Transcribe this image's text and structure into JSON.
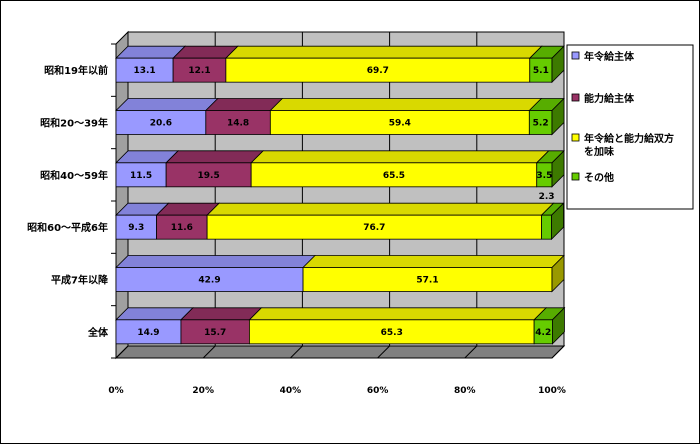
{
  "chart_data": {
    "type": "bar",
    "orientation": "horizontal",
    "stacked": "percent",
    "categories": [
      "昭和19年以前",
      "昭和20～39年",
      "昭和40～59年",
      "昭和60～平成6年",
      "平成7年以降",
      "全体"
    ],
    "series": [
      {
        "name": "年令給主体",
        "values": [
          13.1,
          20.6,
          11.5,
          9.3,
          42.9,
          14.9
        ],
        "color": "#9999ff"
      },
      {
        "name": "能力給主体",
        "values": [
          12.1,
          14.8,
          19.5,
          11.6,
          0,
          15.7
        ],
        "color": "#993366"
      },
      {
        "name": "年令給と能力給双方を加味",
        "values": [
          69.7,
          59.4,
          65.5,
          76.7,
          57.1,
          65.3
        ],
        "color": "#ffff00"
      },
      {
        "name": "その他",
        "values": [
          5.1,
          5.2,
          3.5,
          2.3,
          0,
          4.2
        ],
        "color": "#66cc00"
      }
    ],
    "labels": [
      [
        "13.1",
        "12.1",
        "69.7",
        "5.1"
      ],
      [
        "20.6",
        "14.8",
        "59.4",
        "5.2"
      ],
      [
        "11.5",
        "19.5",
        "65.5",
        "3.5"
      ],
      [
        "9.3",
        "11.6",
        "76.7",
        "2.3"
      ],
      [
        "42.9",
        "",
        "57.1",
        ""
      ],
      [
        "14.9",
        "15.7",
        "65.3",
        "4.2"
      ]
    ],
    "xticks": [
      "0%",
      "20%",
      "40%",
      "60%",
      "80%",
      "100%"
    ],
    "xlim": [
      0,
      100
    ],
    "grid": true,
    "legend_position": "right",
    "legend_labels": [
      [
        "年令給主体"
      ],
      [
        "能力給主体"
      ],
      [
        "年令給と能力給双方",
        "を加味"
      ],
      [
        "その他"
      ]
    ]
  }
}
